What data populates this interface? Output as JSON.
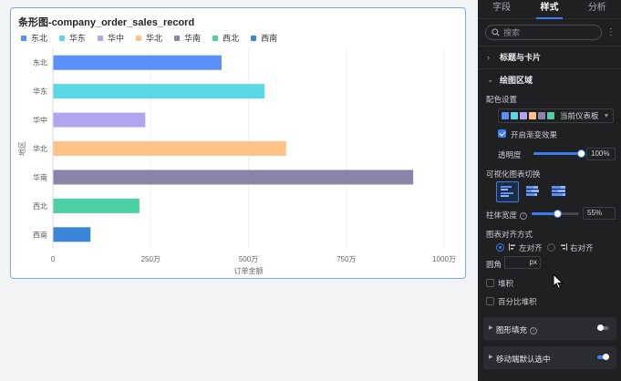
{
  "chart_card": {
    "title": "条形图-company_order_sales_record"
  },
  "chart_data": {
    "type": "bar",
    "orientation": "horizontal",
    "title": "条形图-company_order_sales_record",
    "xlabel": "订单金额",
    "ylabel": "地区",
    "categories": [
      "东北",
      "华东",
      "华中",
      "华北",
      "华南",
      "西北",
      "西南"
    ],
    "values": [
      4300000,
      5400000,
      2350000,
      5950000,
      9200000,
      2200000,
      950000
    ],
    "colors": [
      "#5b8ff9",
      "#5ad8e6",
      "#b3a4ee",
      "#ffc387",
      "#8a84a8",
      "#4fcfa5",
      "#3a85d6"
    ],
    "xlim": [
      0,
      10000000
    ],
    "xticks": [
      0,
      2500000,
      5000000,
      7500000,
      10000000
    ],
    "xtick_labels": [
      "0",
      "250万",
      "500万",
      "750万",
      "1000万"
    ],
    "grid": true,
    "legend_position": "top-left"
  },
  "panel": {
    "tabs": [
      {
        "label": "字段",
        "active": false
      },
      {
        "label": "样式",
        "active": true
      },
      {
        "label": "分析",
        "active": false
      }
    ],
    "search_placeholder": "搜索",
    "sections": {
      "title_card": "标题与卡片",
      "plot_area": "绘图区域"
    },
    "palette": {
      "label": "配色设置",
      "name": "当前仪表板",
      "swatches": [
        "#5b8ff9",
        "#5ad8e6",
        "#b3a4ee",
        "#ffc387",
        "#8a84a8",
        "#4fcfa5"
      ]
    },
    "gradient": {
      "label": "开启渐变效果",
      "checked": true
    },
    "opacity": {
      "label": "透明度",
      "value": "100%",
      "level": 1.0
    },
    "viz_switch": {
      "label": "可视化图表切换"
    },
    "bar_width": {
      "label": "柱体宽度",
      "value": "55%",
      "level": 0.55
    },
    "align": {
      "label": "图表对齐方式",
      "options": [
        {
          "label": "左对齐",
          "selected": true
        },
        {
          "label": "右对齐",
          "selected": false
        }
      ]
    },
    "radius": {
      "label": "圆角",
      "unit": "px"
    },
    "stack": {
      "label": "堆积",
      "checked": false
    },
    "percent_stack": {
      "label": "百分比堆积",
      "checked": false
    },
    "shape_fill": {
      "label": "图形填充",
      "enabled": false
    },
    "mobile_default": {
      "label": "移动端默认选中",
      "enabled": true
    }
  }
}
